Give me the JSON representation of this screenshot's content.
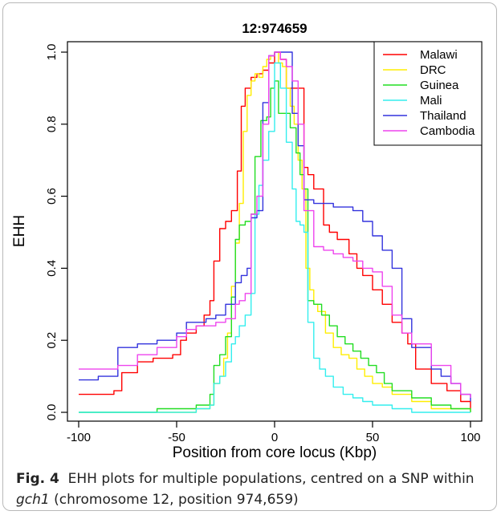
{
  "chart_data": {
    "type": "line",
    "title": "12:974659",
    "xlabel": "Position from core locus (Kbp)",
    "ylabel": "EHH",
    "xlim": [
      -100,
      100
    ],
    "ylim": [
      0,
      1.0
    ],
    "xticks": [
      -100,
      -50,
      0,
      50,
      100
    ],
    "yticks": [
      0.0,
      0.2,
      0.4,
      0.6,
      0.8,
      1.0
    ],
    "legend_position": "top-right",
    "series": [
      {
        "name": "Malawi",
        "color": "#ff0000",
        "x": [
          -100,
          -90,
          -82,
          -78,
          -70,
          -62,
          -52,
          -48,
          -45,
          -40,
          -36,
          -33,
          -31,
          -28,
          -25,
          -22,
          -19,
          -17,
          -15,
          -12,
          -9,
          -6,
          -3,
          0,
          3,
          6,
          9,
          12,
          15,
          17,
          20,
          25,
          28,
          32,
          38,
          42,
          45,
          50,
          55,
          60,
          65,
          68,
          72,
          80,
          88,
          95,
          100
        ],
        "y": [
          0.05,
          0.05,
          0.06,
          0.11,
          0.14,
          0.15,
          0.16,
          0.2,
          0.22,
          0.24,
          0.27,
          0.31,
          0.42,
          0.51,
          0.53,
          0.56,
          0.67,
          0.85,
          0.9,
          0.93,
          0.94,
          0.95,
          0.97,
          1.0,
          0.98,
          0.9,
          0.9,
          0.9,
          0.68,
          0.66,
          0.62,
          0.52,
          0.5,
          0.48,
          0.44,
          0.4,
          0.38,
          0.34,
          0.3,
          0.25,
          0.22,
          0.19,
          0.12,
          0.08,
          0.06,
          0.03,
          0.01
        ]
      },
      {
        "name": "DRC",
        "color": "#ffee00",
        "x": [
          -100,
          -60,
          -40,
          -33,
          -31,
          -28,
          -26,
          -24,
          -22,
          -20,
          -18,
          -16,
          -14,
          -12,
          -10,
          -8,
          -6,
          -4,
          -2,
          0,
          2,
          4,
          6,
          8,
          10,
          12,
          14,
          16,
          18,
          20,
          22,
          26,
          30,
          34,
          38,
          42,
          46,
          50,
          55,
          60,
          70,
          80,
          100
        ],
        "y": [
          0.0,
          0.0,
          0.01,
          0.02,
          0.08,
          0.1,
          0.15,
          0.22,
          0.35,
          0.47,
          0.58,
          0.78,
          0.88,
          0.92,
          0.94,
          0.93,
          0.96,
          0.98,
          0.99,
          1.0,
          0.97,
          0.96,
          0.9,
          0.85,
          0.8,
          0.7,
          0.62,
          0.4,
          0.34,
          0.3,
          0.28,
          0.22,
          0.18,
          0.16,
          0.15,
          0.12,
          0.1,
          0.08,
          0.07,
          0.05,
          0.03,
          0.01,
          0.0
        ]
      },
      {
        "name": "Guinea",
        "color": "#22dd22",
        "x": [
          -100,
          -60,
          -40,
          -33,
          -31,
          -28,
          -25,
          -22,
          -20,
          -18,
          -15,
          -12,
          -10,
          -7,
          -4,
          -2,
          0,
          2,
          5,
          8,
          11,
          13,
          15,
          17,
          20,
          24,
          28,
          32,
          36,
          40,
          44,
          48,
          52,
          56,
          60,
          70,
          80,
          90,
          100
        ],
        "y": [
          0.0,
          0.01,
          0.02,
          0.05,
          0.13,
          0.16,
          0.21,
          0.32,
          0.48,
          0.52,
          0.53,
          0.55,
          0.71,
          0.81,
          0.82,
          0.9,
          0.92,
          0.83,
          0.83,
          0.79,
          0.72,
          0.66,
          0.62,
          0.31,
          0.3,
          0.27,
          0.24,
          0.21,
          0.19,
          0.17,
          0.15,
          0.13,
          0.11,
          0.08,
          0.06,
          0.04,
          0.02,
          0.01,
          0.0
        ]
      },
      {
        "name": "Mali",
        "color": "#33eeee",
        "x": [
          -100,
          -60,
          -40,
          -33,
          -31,
          -28,
          -25,
          -22,
          -20,
          -18,
          -15,
          -12,
          -10,
          -8,
          -6,
          -3,
          0,
          3,
          6,
          9,
          11,
          13,
          15,
          17,
          20,
          23,
          26,
          30,
          35,
          40,
          45,
          50,
          60,
          70,
          80,
          100
        ],
        "y": [
          0.0,
          0.0,
          0.01,
          0.02,
          0.08,
          0.1,
          0.14,
          0.19,
          0.21,
          0.24,
          0.27,
          0.33,
          0.55,
          0.63,
          0.7,
          0.78,
          0.97,
          0.9,
          0.75,
          0.62,
          0.53,
          0.52,
          0.5,
          0.25,
          0.15,
          0.12,
          0.1,
          0.07,
          0.05,
          0.04,
          0.03,
          0.02,
          0.01,
          0.0,
          0.0,
          0.0
        ]
      },
      {
        "name": "Thailand",
        "color": "#3333dd",
        "x": [
          -100,
          -90,
          -80,
          -70,
          -60,
          -50,
          -45,
          -40,
          -35,
          -30,
          -25,
          -20,
          -17,
          -14,
          -12,
          -9,
          -6,
          -3,
          0,
          3,
          6,
          9,
          12,
          15,
          20,
          30,
          40,
          45,
          50,
          55,
          60,
          65,
          70,
          80,
          85,
          90,
          95,
          100
        ],
        "y": [
          0.09,
          0.1,
          0.18,
          0.19,
          0.2,
          0.22,
          0.25,
          0.25,
          0.26,
          0.27,
          0.3,
          0.36,
          0.38,
          0.4,
          0.54,
          0.56,
          0.86,
          0.99,
          1.0,
          1.0,
          1.0,
          0.83,
          0.74,
          0.59,
          0.58,
          0.57,
          0.56,
          0.53,
          0.49,
          0.45,
          0.4,
          0.26,
          0.18,
          0.12,
          0.1,
          0.08,
          0.05,
          0.03
        ]
      },
      {
        "name": "Cambodia",
        "color": "#ee44ee",
        "x": [
          -100,
          -80,
          -70,
          -60,
          -50,
          -45,
          -40,
          -35,
          -30,
          -25,
          -20,
          -18,
          -15,
          -12,
          -9,
          -6,
          -3,
          0,
          3,
          6,
          9,
          12,
          15,
          20,
          25,
          30,
          35,
          40,
          45,
          50,
          55,
          60,
          65,
          70,
          80,
          90,
          95,
          100
        ],
        "y": [
          0.12,
          0.13,
          0.16,
          0.18,
          0.21,
          0.23,
          0.24,
          0.24,
          0.25,
          0.26,
          0.3,
          0.31,
          0.33,
          0.55,
          0.6,
          0.8,
          0.99,
          1.0,
          0.98,
          0.96,
          0.92,
          0.8,
          0.56,
          0.46,
          0.45,
          0.44,
          0.43,
          0.42,
          0.4,
          0.39,
          0.35,
          0.27,
          0.22,
          0.19,
          0.13,
          0.08,
          0.05,
          0.04
        ]
      }
    ]
  },
  "caption": {
    "figure_label": "Fig. 4",
    "text": "EHH plots for multiple populations, centred on a SNP within",
    "gene": "gch1",
    "text_end": "(chromosome 12, position 974,659)"
  }
}
